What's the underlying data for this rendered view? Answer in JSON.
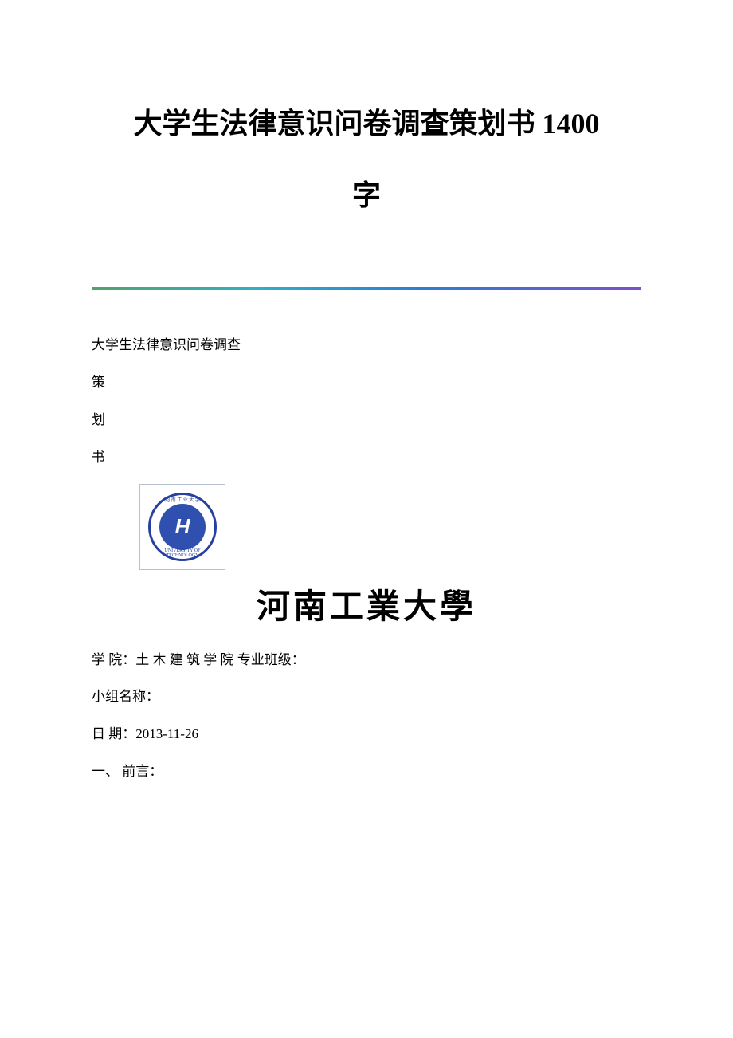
{
  "document": {
    "title_line1": "大学生法律意识问卷调查策划书 1400",
    "title_line2": "字",
    "divider_gradient": {
      "colors": [
        "#53a26b",
        "#2fb0c4",
        "#2c7ed4",
        "#7b4fd0"
      ]
    },
    "body": {
      "intro_line": "大学生法律意识问卷调查",
      "char1": "策",
      "char2": "划",
      "char3": "书",
      "logo": {
        "border_color": "#b8c0d0",
        "emblem_border": "#2540a0",
        "inner_bg": "#3050b0",
        "letter": "H",
        "ring_top_text": "河 南 工 业 大 学",
        "ring_bottom_text": "UNIVERSITY OF TECHNOLOGY",
        "year_label": "1956"
      },
      "university_name": "河南工業大學",
      "college_line": "学 院：土 木 建 筑 学 院 专业班级：",
      "group_line": "小组名称：",
      "date_line": "日 期：2013-11-26",
      "section_line": "一、 前言："
    },
    "colors": {
      "text": "#000000",
      "background": "#ffffff"
    },
    "typography": {
      "title_fontsize": 36,
      "body_fontsize": 17,
      "university_fontsize": 42
    }
  }
}
